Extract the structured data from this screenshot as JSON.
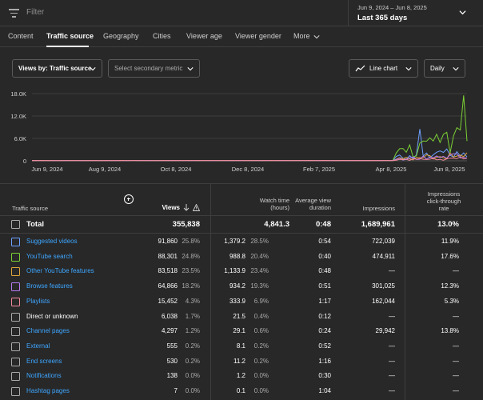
{
  "topbar": {
    "filter_placeholder": "Filter",
    "date_range": "Jun 9, 2024 – Jun 8, 2025",
    "date_preset": "Last 365 days"
  },
  "tabs": [
    {
      "label": "Content",
      "active": false
    },
    {
      "label": "Traffic source",
      "active": true
    },
    {
      "label": "Geography",
      "active": false
    },
    {
      "label": "Cities",
      "active": false
    },
    {
      "label": "Viewer age",
      "active": false
    },
    {
      "label": "Viewer gender",
      "active": false
    },
    {
      "label": "More",
      "active": false
    }
  ],
  "controls": {
    "primary_metric": "Views by: Traffic source",
    "secondary_metric": "Select secondary metric",
    "chart_type": "Line chart",
    "granularity": "Daily"
  },
  "chart_data": {
    "type": "line",
    "y_ticks": [
      "18.0K",
      "12.0K",
      "6.0K",
      "0"
    ],
    "x_ticks": [
      "Jun 9, 2024",
      "Aug 9, 2024",
      "Oct 8, 2024",
      "Dec 8, 2024",
      "Feb 7, 2025",
      "Apr 8, 2025",
      "Jun 8, 2025"
    ],
    "ylim": [
      0,
      18000
    ],
    "grid": true,
    "series": [
      {
        "color": "#6ea1ff",
        "peak_value": 8500
      },
      {
        "color": "#7bd134",
        "peak_value": 17500
      },
      {
        "color": "#e0a43a",
        "peak_value": 4500
      },
      {
        "color": "#b57cf2",
        "peak_value": 3800
      },
      {
        "color": "#f28b9b",
        "peak_value": 2000
      }
    ]
  },
  "table": {
    "headers": {
      "source": "Traffic source",
      "views": "Views",
      "watch_time": [
        "Watch time",
        "(hours)"
      ],
      "avg_duration": [
        "Average view",
        "duration"
      ],
      "impressions": "Impressions",
      "ctr": [
        "Impressions",
        "click-through",
        "rate"
      ]
    },
    "total": {
      "label": "Total",
      "views": "355,838",
      "watch": "4,841.3",
      "avg": "0:48",
      "impressions": "1,689,961",
      "ctr": "13.0%"
    },
    "rows": [
      {
        "name": "Suggested videos",
        "link": true,
        "color": "#6ea1ff",
        "views": "91,860",
        "views_pct": "25.8%",
        "watch": "1,379.2",
        "watch_pct": "28.5%",
        "avg": "0:54",
        "imp": "722,039",
        "ctr": "11.9%"
      },
      {
        "name": "YouTube search",
        "link": true,
        "color": "#7bd134",
        "views": "88,301",
        "views_pct": "24.8%",
        "watch": "988.8",
        "watch_pct": "20.4%",
        "avg": "0:40",
        "imp": "474,911",
        "ctr": "17.6%"
      },
      {
        "name": "Other YouTube features",
        "link": true,
        "color": "#e0a43a",
        "views": "83,518",
        "views_pct": "23.5%",
        "watch": "1,133.9",
        "watch_pct": "23.4%",
        "avg": "0:48",
        "imp": "—",
        "ctr": "—"
      },
      {
        "name": "Browse features",
        "link": true,
        "color": "#b57cf2",
        "views": "64,866",
        "views_pct": "18.2%",
        "watch": "934.2",
        "watch_pct": "19.3%",
        "avg": "0:51",
        "imp": "301,025",
        "ctr": "12.3%"
      },
      {
        "name": "Playlists",
        "link": true,
        "color": "#f28b9b",
        "views": "15,452",
        "views_pct": "4.3%",
        "watch": "333.9",
        "watch_pct": "6.9%",
        "avg": "1:17",
        "imp": "162,044",
        "ctr": "5.3%"
      },
      {
        "name": "Direct or unknown",
        "link": false,
        "color": "#aaaaaa",
        "views": "6,038",
        "views_pct": "1.7%",
        "watch": "21.5",
        "watch_pct": "0.4%",
        "avg": "0:12",
        "imp": "—",
        "ctr": "—"
      },
      {
        "name": "Channel pages",
        "link": true,
        "color": "#aaaaaa",
        "views": "4,297",
        "views_pct": "1.2%",
        "watch": "29.1",
        "watch_pct": "0.6%",
        "avg": "0:24",
        "imp": "29,942",
        "ctr": "13.8%"
      },
      {
        "name": "External",
        "link": true,
        "color": "#aaaaaa",
        "views": "555",
        "views_pct": "0.2%",
        "watch": "8.1",
        "watch_pct": "0.2%",
        "avg": "0:52",
        "imp": "—",
        "ctr": "—"
      },
      {
        "name": "End screens",
        "link": true,
        "color": "#aaaaaa",
        "views": "530",
        "views_pct": "0.2%",
        "watch": "11.2",
        "watch_pct": "0.2%",
        "avg": "1:16",
        "imp": "—",
        "ctr": "—"
      },
      {
        "name": "Notifications",
        "link": true,
        "color": "#aaaaaa",
        "views": "138",
        "views_pct": "0.0%",
        "watch": "1.2",
        "watch_pct": "0.0%",
        "avg": "0:30",
        "imp": "—",
        "ctr": "—"
      },
      {
        "name": "Hashtag pages",
        "link": true,
        "color": "#aaaaaa",
        "views": "7",
        "views_pct": "0.0%",
        "watch": "0.1",
        "watch_pct": "0.0%",
        "avg": "1:04",
        "imp": "—",
        "ctr": "—"
      }
    ]
  }
}
